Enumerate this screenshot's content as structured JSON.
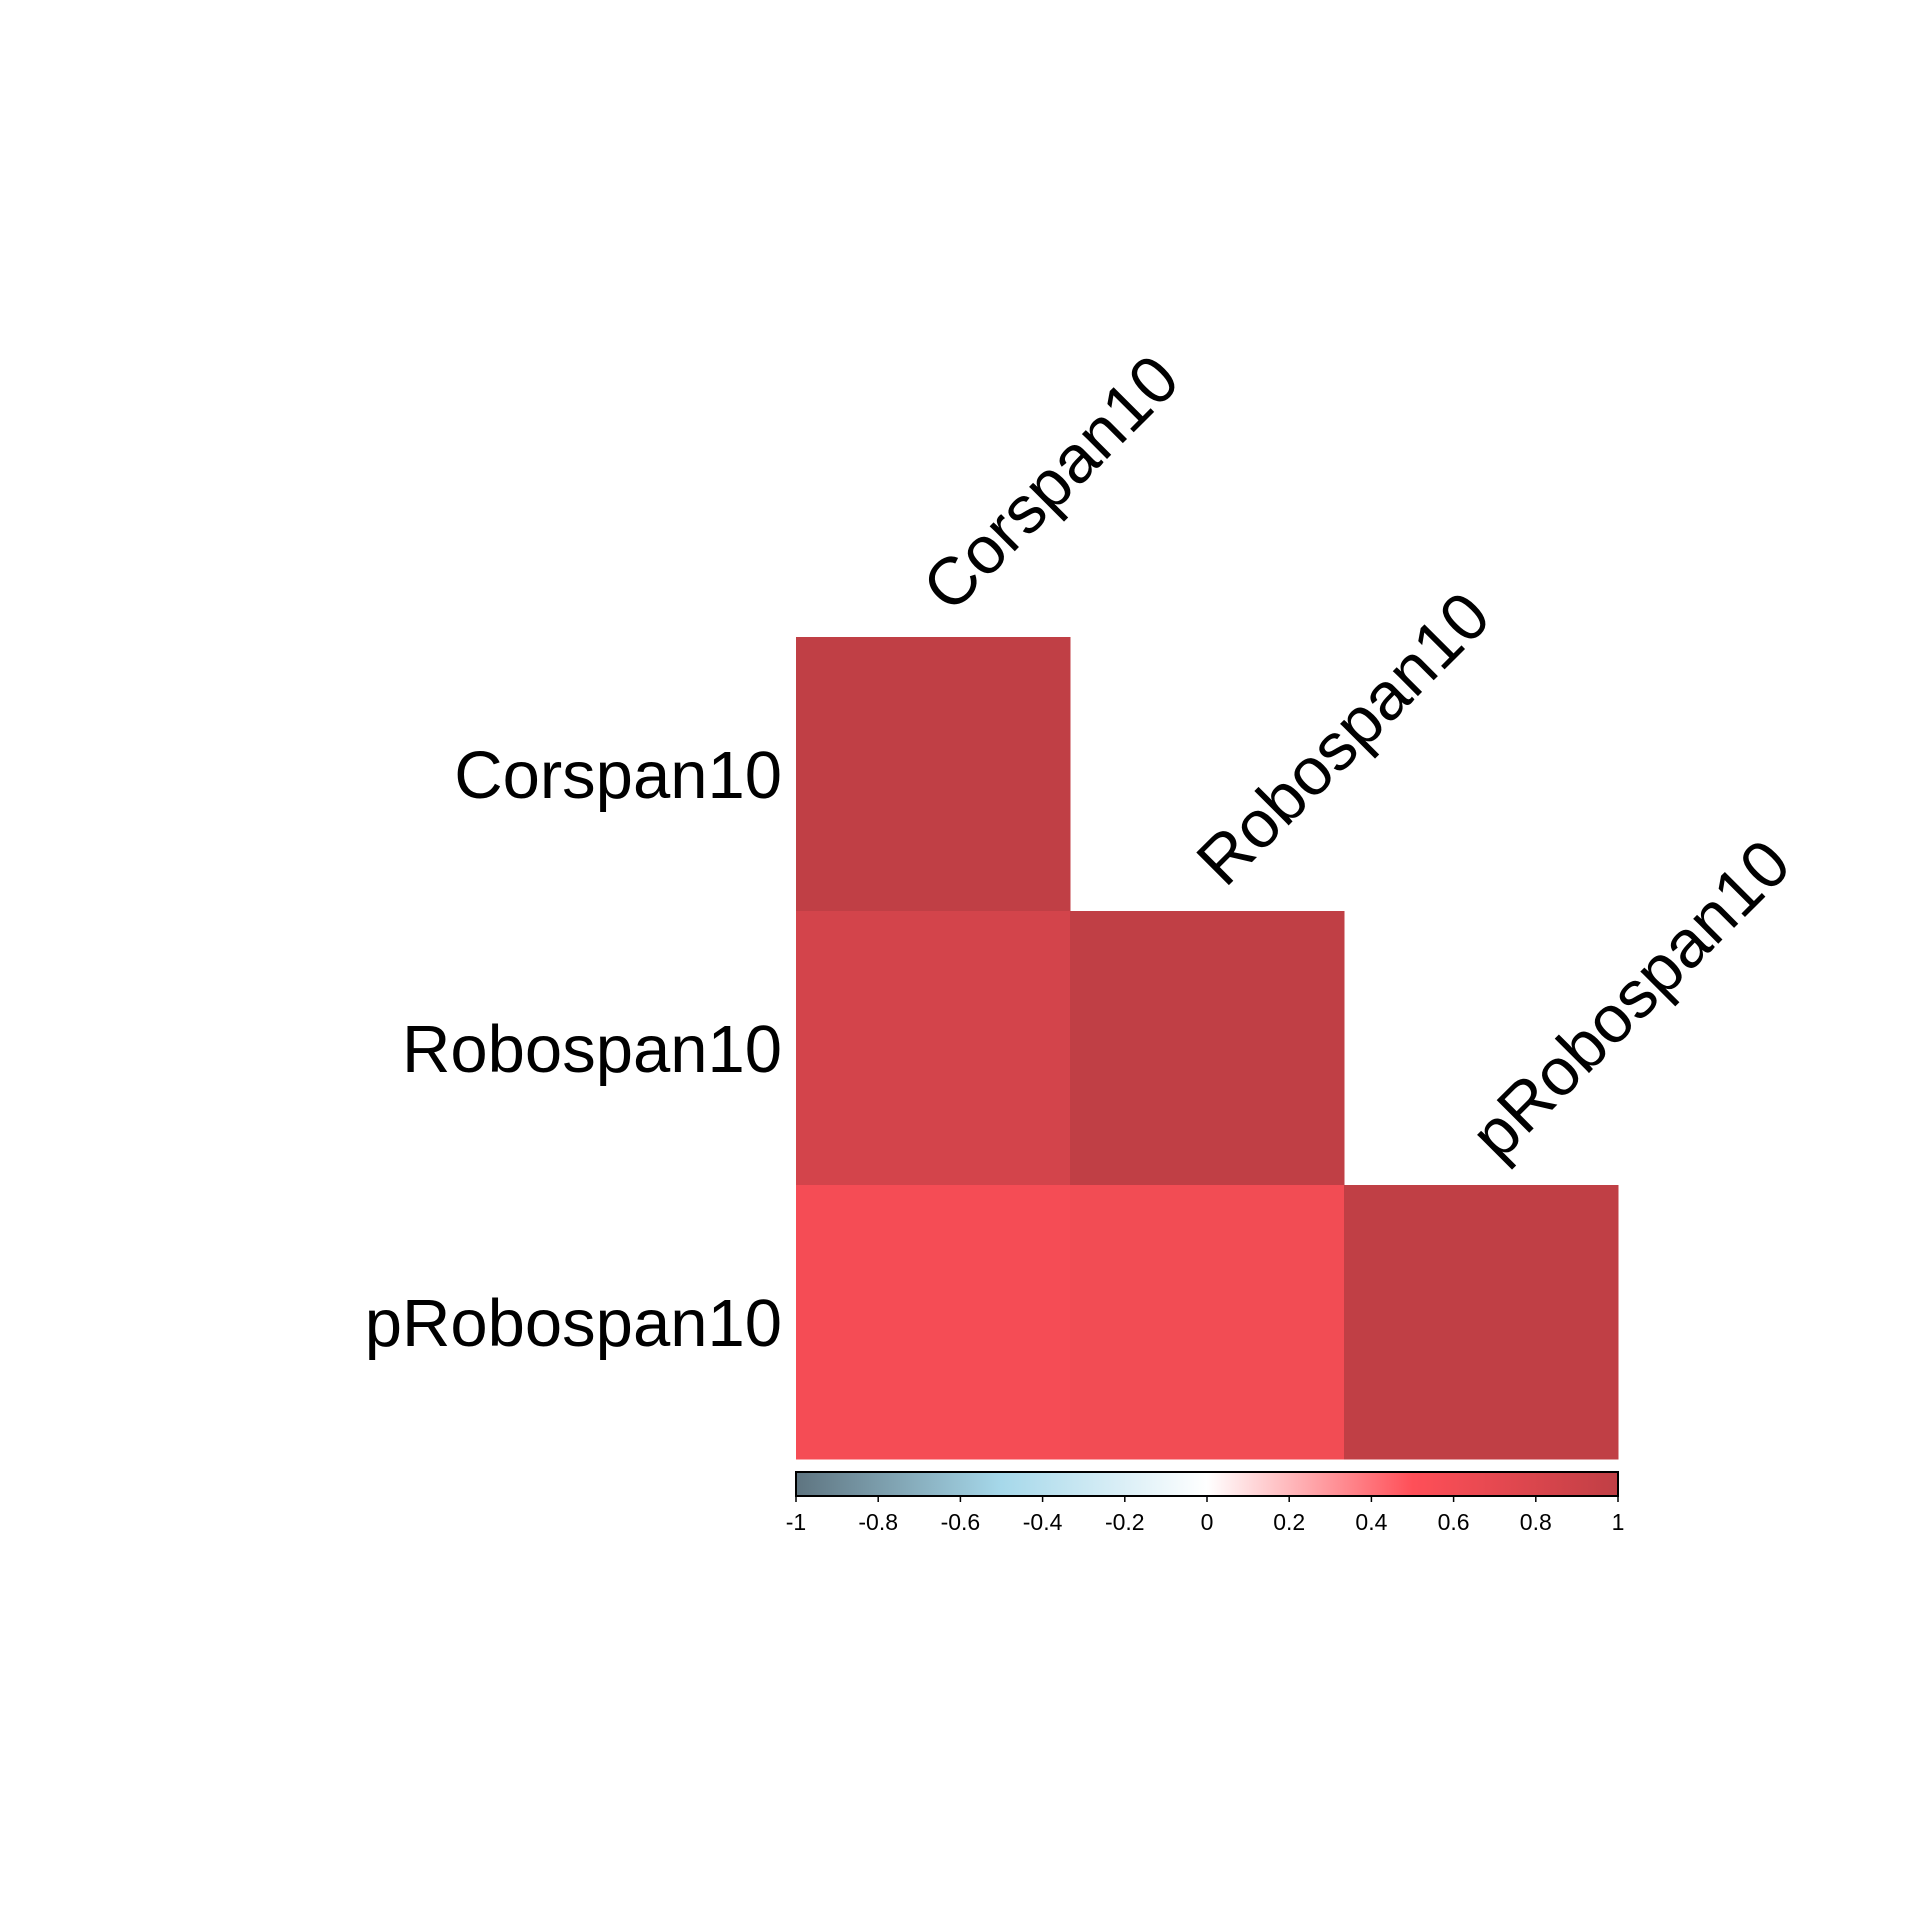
{
  "chart_data": {
    "type": "heatmap",
    "variables": [
      "Corspan10",
      "Robospan10",
      "pRobospan10"
    ],
    "matrix": [
      [
        1.0,
        null,
        null
      ],
      [
        0.85,
        1.0,
        null
      ],
      [
        0.58,
        0.6,
        1.0
      ]
    ],
    "colorbar": {
      "range": [
        -1,
        1
      ],
      "ticks": [
        "-1",
        "-0.8",
        "-0.6",
        "-0.4",
        "-0.2",
        "0",
        "0.2",
        "0.4",
        "0.6",
        "0.8",
        "1"
      ],
      "stops": [
        {
          "v": -1.0,
          "color": "#5e7480"
        },
        {
          "v": -0.5,
          "color": "#a6d8ea"
        },
        {
          "v": 0.0,
          "color": "#ffffff"
        },
        {
          "v": 0.5,
          "color": "#ff4f58"
        },
        {
          "v": 1.0,
          "color": "#c03f45"
        }
      ]
    },
    "lower_triangle_only": true
  }
}
